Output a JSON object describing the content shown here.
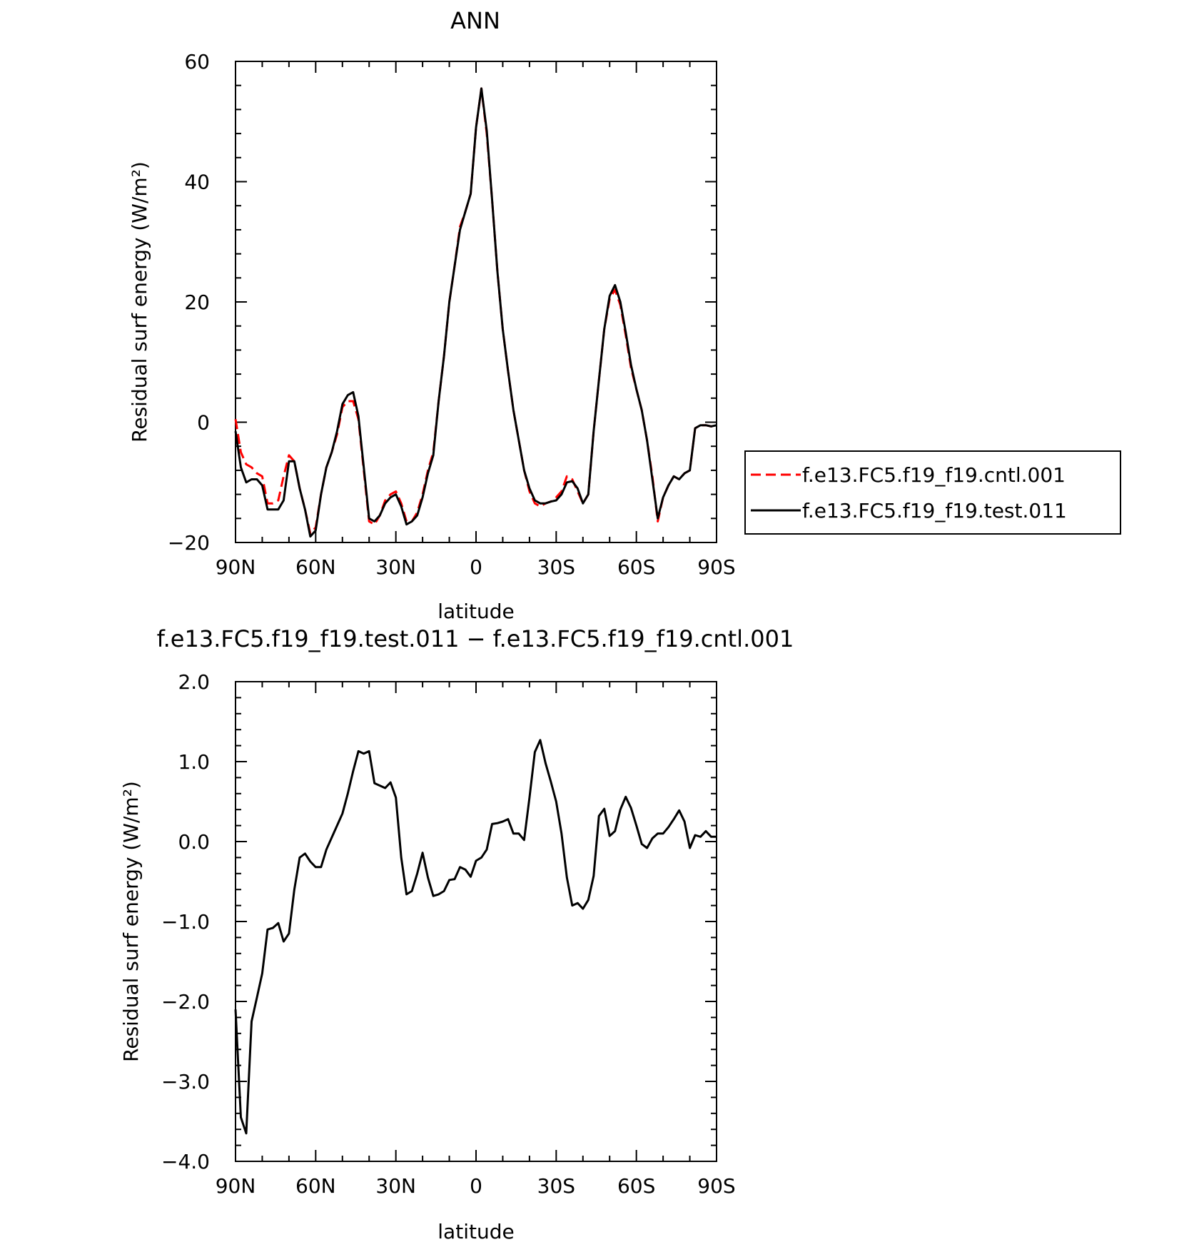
{
  "chart_data": [
    {
      "type": "line",
      "title": "ANN",
      "xlabel": "latitude",
      "ylabel": "Residual surf energy (W/m²)",
      "xticks": [
        "90N",
        "60N",
        "30N",
        "0",
        "30S",
        "60S",
        "90S"
      ],
      "yticks": [
        "60",
        "40",
        "20",
        "0",
        "−20"
      ],
      "xlim": [
        90,
        -90
      ],
      "ylim": [
        -20,
        60
      ],
      "grid": false,
      "legend": "right",
      "series": [
        {
          "name": "f.e13.FC5.f19_f19.cntl.001",
          "color": "#ff0000",
          "dash": "dashed",
          "x": [
            90,
            88,
            86,
            84,
            82,
            80,
            78,
            76,
            74,
            72,
            70,
            68,
            66,
            64,
            62,
            60,
            58,
            56,
            54,
            52,
            50,
            48,
            46,
            44,
            42,
            40,
            38,
            36,
            34,
            32,
            30,
            28,
            26,
            24,
            22,
            20,
            18,
            16,
            14,
            12,
            10,
            8,
            6,
            4,
            2,
            0,
            -2,
            -4,
            -6,
            -8,
            -10,
            -12,
            -14,
            -16,
            -18,
            -20,
            -22,
            -24,
            -26,
            -28,
            -30,
            -32,
            -34,
            -36,
            -38,
            -40,
            -42,
            -44,
            -46,
            -48,
            -50,
            -52,
            -54,
            -56,
            -58,
            -60,
            -62,
            -64,
            -66,
            -68,
            -70,
            -72,
            -74,
            -76,
            -78,
            -80,
            -82,
            -84,
            -86,
            -88,
            -90
          ],
          "y": [
            0.5,
            -5,
            -7,
            -7.5,
            -8.5,
            -9,
            -13.5,
            -13.5,
            -13,
            -9,
            -5.5,
            -6.5,
            -11,
            -14.5,
            -18.5,
            -17.5,
            -12,
            -7.5,
            -5,
            -2,
            2.5,
            3.5,
            3.5,
            0.5,
            -8,
            -16.5,
            -17,
            -15.5,
            -13,
            -12,
            -11.5,
            -13.5,
            -16.5,
            -16.5,
            -15,
            -12,
            -8,
            -5,
            3.5,
            11,
            20,
            26,
            32.5,
            35,
            38,
            49,
            55.5,
            48,
            37,
            25,
            15.5,
            8.5,
            2,
            -3,
            -8,
            -11.5,
            -13.5,
            -14,
            -13.5,
            -13.2,
            -12.5,
            -11.5,
            -9,
            -9.5,
            -11.5,
            -13.5,
            -12,
            -1.5,
            7,
            15.5,
            20.5,
            22,
            19.5,
            14.5,
            9,
            5.5,
            2,
            -3,
            -9,
            -16.5,
            -12.5,
            -10.5,
            -9,
            -9.5,
            -8.5,
            -8,
            -1,
            -0.5,
            -0.5,
            -0.7,
            -0.5
          ]
        },
        {
          "name": "f.e13.FC5.f19_f19.test.011",
          "color": "#000000",
          "dash": "solid",
          "x": [
            90,
            88,
            86,
            84,
            82,
            80,
            78,
            76,
            74,
            72,
            70,
            68,
            66,
            64,
            62,
            60,
            58,
            56,
            54,
            52,
            50,
            48,
            46,
            44,
            42,
            40,
            38,
            36,
            34,
            32,
            30,
            28,
            26,
            24,
            22,
            20,
            18,
            16,
            14,
            12,
            10,
            8,
            6,
            4,
            2,
            0,
            -2,
            -4,
            -6,
            -8,
            -10,
            -12,
            -14,
            -16,
            -18,
            -20,
            -22,
            -24,
            -26,
            -28,
            -30,
            -32,
            -34,
            -36,
            -38,
            -40,
            -42,
            -44,
            -46,
            -48,
            -50,
            -52,
            -54,
            -56,
            -58,
            -60,
            -62,
            -64,
            -66,
            -68,
            -70,
            -72,
            -74,
            -76,
            -78,
            -80,
            -82,
            -84,
            -86,
            -88,
            -90
          ],
          "y": [
            -1.5,
            -7.5,
            -10,
            -9.5,
            -9.5,
            -10.5,
            -14.5,
            -14.5,
            -14.5,
            -13,
            -6.5,
            -6.5,
            -11,
            -14.5,
            -19,
            -18,
            -12,
            -7.5,
            -5,
            -1.5,
            3,
            4.5,
            5,
            1,
            -7.5,
            -16,
            -16.5,
            -15.5,
            -13.5,
            -12.5,
            -12,
            -14,
            -17,
            -16.5,
            -15.5,
            -12.5,
            -8.5,
            -5.5,
            3.5,
            11,
            20,
            26,
            32,
            35,
            38,
            49,
            55.5,
            48.5,
            37,
            25,
            15.5,
            8.5,
            2,
            -3,
            -8,
            -11,
            -13,
            -13.5,
            -13.5,
            -13.2,
            -13,
            -12,
            -10,
            -9.8,
            -11,
            -13.5,
            -12,
            -1.5,
            7,
            15.5,
            21,
            22.8,
            20,
            15,
            9.5,
            5.5,
            2,
            -3,
            -9.5,
            -16,
            -12.5,
            -10.5,
            -9,
            -9.5,
            -8.5,
            -8,
            -1,
            -0.5,
            -0.5,
            -0.7,
            -0.5
          ]
        }
      ]
    },
    {
      "type": "line",
      "title": "f.e13.FC5.f19_f19.test.011 − f.e13.FC5.f19_f19.cntl.001",
      "xlabel": "latitude",
      "ylabel": "Residual surf energy (W/m²)",
      "xticks": [
        "90N",
        "60N",
        "30N",
        "0",
        "30S",
        "60S",
        "90S"
      ],
      "yticks": [
        "2.0",
        "1.0",
        "0.0",
        "−1.0",
        "−2.0",
        "−3.0",
        "−4.0"
      ],
      "xlim": [
        90,
        -90
      ],
      "ylim": [
        -4,
        2
      ],
      "grid": false,
      "series": [
        {
          "color": "#000000",
          "dash": "solid",
          "x": [
            90,
            88,
            86,
            84,
            82,
            80,
            78,
            76,
            74,
            72,
            70,
            68,
            66,
            64,
            62,
            60,
            58,
            56,
            54,
            52,
            50,
            48,
            46,
            44,
            42,
            40,
            38,
            36,
            34,
            32,
            30,
            28,
            26,
            24,
            22,
            20,
            18,
            16,
            14,
            12,
            10,
            8,
            6,
            4,
            2,
            0,
            -2,
            -4,
            -6,
            -8,
            -10,
            -12,
            -14,
            -16,
            -18,
            -20,
            -22,
            -24,
            -26,
            -28,
            -30,
            -32,
            -34,
            -36,
            -38,
            -40,
            -42,
            -44,
            -46,
            -48,
            -50,
            -52,
            -54,
            -56,
            -58,
            -60,
            -62,
            -64,
            -66,
            -68,
            -70,
            -72,
            -74,
            -76,
            -78,
            -80,
            -82,
            -84,
            -86,
            -88,
            -90
          ],
          "y": [
            -2.1,
            -3.45,
            -3.65,
            -2.25,
            -1.95,
            -1.65,
            -1.1,
            -1.08,
            -1.02,
            -1.25,
            -1.15,
            -0.6,
            -0.2,
            -0.15,
            -0.25,
            -0.32,
            -0.32,
            -0.1,
            0.05,
            0.2,
            0.35,
            0.6,
            0.88,
            1.13,
            1.1,
            1.13,
            0.73,
            0.7,
            0.67,
            0.74,
            0.55,
            -0.2,
            -0.66,
            -0.62,
            -0.4,
            -0.14,
            -0.45,
            -0.68,
            -0.66,
            -0.62,
            -0.48,
            -0.47,
            -0.32,
            -0.35,
            -0.44,
            -0.24,
            -0.2,
            -0.1,
            0.22,
            0.23,
            0.25,
            0.28,
            0.1,
            0.1,
            0.02,
            0.55,
            1.12,
            1.27,
            0.98,
            0.75,
            0.5,
            0.1,
            -0.45,
            -0.8,
            -0.77,
            -0.84,
            -0.73,
            -0.43,
            0.32,
            0.41,
            0.07,
            0.13,
            0.4,
            0.56,
            0.42,
            0.2,
            -0.03,
            -0.08,
            0.04,
            0.1,
            0.1,
            0.18,
            0.28,
            0.39,
            0.25,
            -0.08,
            0.08,
            0.06,
            0.13,
            0.06,
            0.06
          ]
        }
      ]
    }
  ]
}
